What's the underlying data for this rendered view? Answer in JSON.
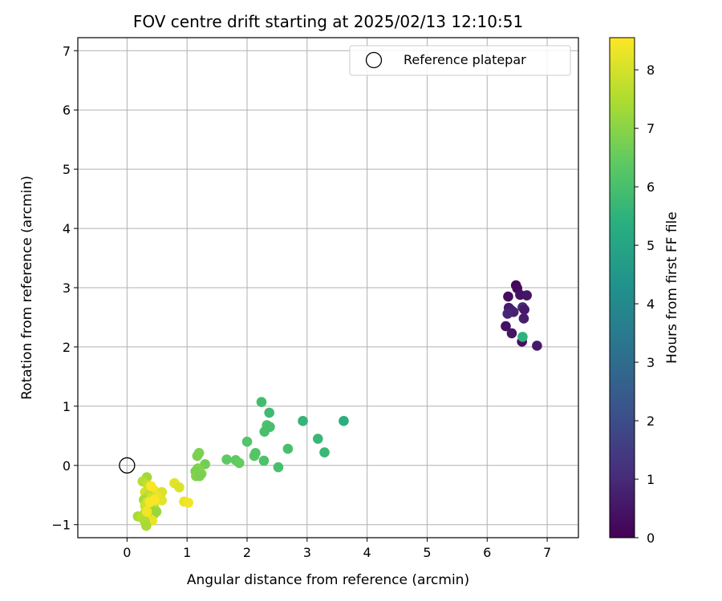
{
  "chart_data": {
    "type": "scatter",
    "title": "FOV centre drift starting at 2025/02/13 12:10:51",
    "xlabel": "Angular distance from reference (arcmin)",
    "ylabel": "Rotation from reference (arcmin)",
    "xlim": [
      -0.82,
      7.52
    ],
    "ylim": [
      -1.22,
      7.22
    ],
    "xticks": [
      0,
      1,
      2,
      3,
      4,
      5,
      6,
      7
    ],
    "yticks": [
      -1,
      0,
      1,
      2,
      3,
      4,
      5,
      6,
      7
    ],
    "xtick_labels": [
      "0",
      "1",
      "2",
      "3",
      "4",
      "5",
      "6",
      "7"
    ],
    "ytick_labels": [
      "−1",
      "0",
      "1",
      "2",
      "3",
      "4",
      "5",
      "6",
      "7"
    ],
    "grid": true,
    "legend_position": "top-right",
    "legend": {
      "label": "Reference platepar"
    },
    "reference_point": {
      "x": 0,
      "y": 0
    },
    "colorbar": {
      "label": "Hours from first FF file",
      "colormap": "viridis",
      "range": [
        0,
        8.55
      ],
      "ticks": [
        0,
        1,
        2,
        3,
        4,
        5,
        6,
        7,
        8
      ],
      "tick_labels": [
        "0",
        "1",
        "2",
        "3",
        "4",
        "5",
        "6",
        "7",
        "8"
      ]
    },
    "points": [
      {
        "x": 6.48,
        "y": 3.04,
        "t": 0.1
      },
      {
        "x": 6.5,
        "y": 2.99,
        "t": 0.2
      },
      {
        "x": 6.35,
        "y": 2.85,
        "t": 0.3
      },
      {
        "x": 6.55,
        "y": 2.88,
        "t": 0.4
      },
      {
        "x": 6.66,
        "y": 2.87,
        "t": 0.5
      },
      {
        "x": 6.36,
        "y": 2.66,
        "t": 0.6
      },
      {
        "x": 6.4,
        "y": 2.62,
        "t": 0.7
      },
      {
        "x": 6.44,
        "y": 2.59,
        "t": 0.8
      },
      {
        "x": 6.34,
        "y": 2.56,
        "t": 0.9
      },
      {
        "x": 6.59,
        "y": 2.67,
        "t": 1.0
      },
      {
        "x": 6.62,
        "y": 2.63,
        "t": 0.6
      },
      {
        "x": 6.61,
        "y": 2.48,
        "t": 0.7
      },
      {
        "x": 6.31,
        "y": 2.35,
        "t": 0.4
      },
      {
        "x": 6.41,
        "y": 2.23,
        "t": 0.5
      },
      {
        "x": 6.58,
        "y": 2.09,
        "t": 0.3
      },
      {
        "x": 6.83,
        "y": 2.02,
        "t": 0.6
      },
      {
        "x": 6.59,
        "y": 2.17,
        "t": 5.5
      },
      {
        "x": 2.24,
        "y": 1.07,
        "t": 5.9
      },
      {
        "x": 2.37,
        "y": 0.89,
        "t": 5.8
      },
      {
        "x": 3.61,
        "y": 0.75,
        "t": 5.4
      },
      {
        "x": 2.93,
        "y": 0.75,
        "t": 5.6
      },
      {
        "x": 2.33,
        "y": 0.68,
        "t": 6.1
      },
      {
        "x": 2.38,
        "y": 0.65,
        "t": 6.0
      },
      {
        "x": 2.29,
        "y": 0.57,
        "t": 6.0
      },
      {
        "x": 3.18,
        "y": 0.45,
        "t": 5.7
      },
      {
        "x": 2.0,
        "y": 0.4,
        "t": 6.2
      },
      {
        "x": 2.68,
        "y": 0.28,
        "t": 6.0
      },
      {
        "x": 3.29,
        "y": 0.22,
        "t": 5.7
      },
      {
        "x": 2.12,
        "y": 0.16,
        "t": 6.3
      },
      {
        "x": 2.14,
        "y": 0.21,
        "t": 6.2
      },
      {
        "x": 2.28,
        "y": 0.08,
        "t": 6.1
      },
      {
        "x": 1.66,
        "y": 0.1,
        "t": 6.4
      },
      {
        "x": 1.81,
        "y": 0.09,
        "t": 6.4
      },
      {
        "x": 1.87,
        "y": 0.04,
        "t": 6.5
      },
      {
        "x": 2.52,
        "y": -0.03,
        "t": 6.0
      },
      {
        "x": 1.2,
        "y": 0.21,
        "t": 6.8
      },
      {
        "x": 1.17,
        "y": 0.16,
        "t": 6.8
      },
      {
        "x": 1.3,
        "y": 0.02,
        "t": 6.7
      },
      {
        "x": 1.18,
        "y": -0.05,
        "t": 6.9
      },
      {
        "x": 1.14,
        "y": -0.1,
        "t": 6.8
      },
      {
        "x": 1.24,
        "y": -0.14,
        "t": 6.9
      },
      {
        "x": 1.15,
        "y": -0.18,
        "t": 6.9
      },
      {
        "x": 1.21,
        "y": -0.18,
        "t": 6.8
      },
      {
        "x": 0.79,
        "y": -0.3,
        "t": 8.2
      },
      {
        "x": 0.87,
        "y": -0.37,
        "t": 8.1
      },
      {
        "x": 0.33,
        "y": -0.2,
        "t": 7.3
      },
      {
        "x": 0.26,
        "y": -0.27,
        "t": 7.6
      },
      {
        "x": 0.35,
        "y": -0.33,
        "t": 7.8
      },
      {
        "x": 0.4,
        "y": -0.38,
        "t": 8.3
      },
      {
        "x": 0.45,
        "y": -0.42,
        "t": 8.4
      },
      {
        "x": 0.3,
        "y": -0.45,
        "t": 8.0
      },
      {
        "x": 0.58,
        "y": -0.45,
        "t": 8.1
      },
      {
        "x": 0.36,
        "y": -0.5,
        "t": 7.7
      },
      {
        "x": 0.5,
        "y": -0.52,
        "t": 8.3
      },
      {
        "x": 0.28,
        "y": -0.58,
        "t": 7.4
      },
      {
        "x": 0.41,
        "y": -0.55,
        "t": 8.0
      },
      {
        "x": 0.58,
        "y": -0.59,
        "t": 8.2
      },
      {
        "x": 0.34,
        "y": -0.62,
        "t": 8.1
      },
      {
        "x": 0.42,
        "y": -0.65,
        "t": 8.4
      },
      {
        "x": 0.95,
        "y": -0.61,
        "t": 8.3
      },
      {
        "x": 1.02,
        "y": -0.63,
        "t": 8.4
      },
      {
        "x": 0.3,
        "y": -0.68,
        "t": 7.9
      },
      {
        "x": 0.45,
        "y": -0.7,
        "t": 7.9
      },
      {
        "x": 0.36,
        "y": -0.72,
        "t": 8.0
      },
      {
        "x": 0.4,
        "y": -0.75,
        "t": 7.3
      },
      {
        "x": 0.49,
        "y": -0.78,
        "t": 7.2
      },
      {
        "x": 0.3,
        "y": -0.8,
        "t": 7.5
      },
      {
        "x": 0.45,
        "y": -0.82,
        "t": 7.2
      },
      {
        "x": 0.18,
        "y": -0.86,
        "t": 7.4
      },
      {
        "x": 0.24,
        "y": -0.88,
        "t": 7.6
      },
      {
        "x": 0.38,
        "y": -0.9,
        "t": 8.0
      },
      {
        "x": 0.42,
        "y": -0.93,
        "t": 8.3
      },
      {
        "x": 0.3,
        "y": -0.95,
        "t": 7.5
      },
      {
        "x": 0.32,
        "y": -1.02,
        "t": 7.4
      },
      {
        "x": 0.4,
        "y": -0.35,
        "t": 8.5
      },
      {
        "x": 0.46,
        "y": -0.58,
        "t": 8.5
      },
      {
        "x": 0.38,
        "y": -0.62,
        "t": 8.45
      },
      {
        "x": 0.33,
        "y": -0.78,
        "t": 8.4
      }
    ]
  }
}
